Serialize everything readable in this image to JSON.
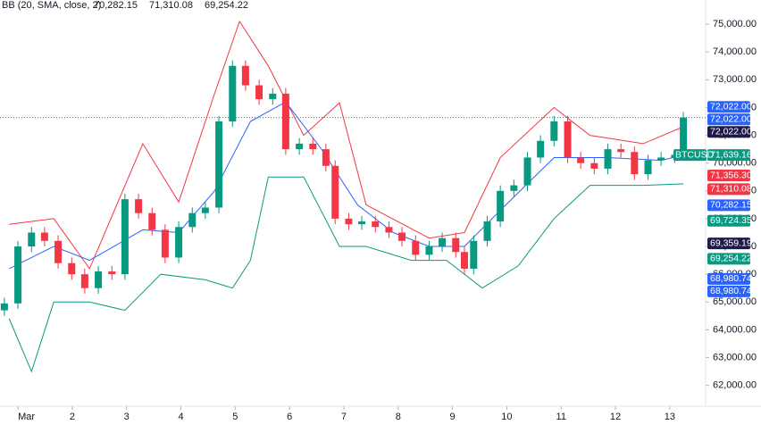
{
  "chart_data": {
    "type": "candlestick",
    "indicator": "BB (20, SMA, close, 2)",
    "indicator_values": [
      {
        "label": "70,282.15",
        "color": "#2962ff"
      },
      {
        "label": "71,310.08",
        "color": "#f23645"
      },
      {
        "label": "69,254.22",
        "color": "#089981"
      }
    ],
    "xlim": [
      0.67,
      13.66
    ],
    "xticks": [
      {
        "value": 1,
        "label": "Mar"
      },
      2,
      3,
      4,
      5,
      6,
      7,
      8,
      9,
      10,
      11,
      12,
      13
    ],
    "ylim": [
      61250,
      75870
    ],
    "yticks": [
      {
        "value": 62000,
        "label": "62,000.00"
      },
      {
        "value": 63000,
        "label": "63,000.00"
      },
      {
        "value": 64000,
        "label": "64,000.00"
      },
      {
        "value": 65000,
        "label": "65,000.00"
      },
      {
        "value": 66000,
        "label": "66,000.00"
      },
      {
        "value": 67000,
        "label": "67,000.00"
      },
      {
        "value": 68000,
        "label": "68,000.00"
      },
      {
        "value": 69000,
        "label": "69,000.00"
      },
      {
        "value": 70000,
        "label": "70,000.00"
      },
      {
        "value": 71000,
        "label": "71,000.00"
      },
      {
        "value": 72000,
        "label": "72,000.00"
      },
      {
        "value": 73000,
        "label": "73,000.00"
      },
      {
        "value": 74000,
        "label": "74,000.00"
      },
      {
        "value": 75000,
        "label": "75,000.00"
      }
    ],
    "up_color": "#089981",
    "down_color": "#f23645",
    "x": [
      0.75,
      1.0,
      1.25,
      1.49,
      1.74,
      1.99,
      2.23,
      2.48,
      2.73,
      2.97,
      3.22,
      3.47,
      3.71,
      3.96,
      4.21,
      4.45,
      4.7,
      4.95,
      5.19,
      5.44,
      5.69,
      5.93,
      6.18,
      6.43,
      6.67,
      6.84,
      7.09,
      7.33,
      7.58,
      7.83,
      8.07,
      8.32,
      8.57,
      8.81,
      9.06,
      9.22,
      9.39,
      9.64,
      9.88,
      10.13,
      10.38,
      10.62,
      10.87,
      11.12,
      11.36,
      11.61,
      11.86,
      12.1,
      12.35,
      12.6,
      12.84,
      13.09,
      13.25
    ],
    "open": [
      64700,
      64950,
      67000,
      67500,
      67200,
      66400,
      66000,
      65500,
      66100,
      66000,
      68700,
      68200,
      67600,
      66600,
      67700,
      68200,
      68400,
      71500,
      73500,
      72800,
      72300,
      72500,
      70500,
      70700,
      70500,
      69900,
      68000,
      67800,
      67900,
      67700,
      67500,
      67200,
      66700,
      67000,
      67300,
      66800,
      66200,
      67200,
      67900,
      69000,
      69200,
      70200,
      70800,
      71500,
      70200,
      70000,
      69800,
      70500,
      70400,
      69600,
      70100,
      70200,
      70300
    ],
    "high": [
      65150,
      67200,
      67700,
      67700,
      67400,
      66600,
      66200,
      66300,
      66300,
      68900,
      68900,
      68400,
      67800,
      67900,
      68400,
      68600,
      71700,
      73700,
      73700,
      73000,
      72700,
      72700,
      70900,
      70900,
      70700,
      70100,
      68200,
      68100,
      68100,
      67900,
      67700,
      67400,
      67200,
      67500,
      67500,
      67000,
      67400,
      68100,
      69200,
      69400,
      70400,
      71000,
      71700,
      71700,
      70400,
      70200,
      70700,
      70700,
      70600,
      70300,
      70400,
      70500,
      71840
    ],
    "low": [
      64500,
      64750,
      66800,
      67000,
      66200,
      65800,
      65300,
      65300,
      65800,
      65800,
      68000,
      67400,
      66400,
      66400,
      67500,
      68000,
      68200,
      71300,
      72600,
      72100,
      72100,
      70300,
      70300,
      70300,
      69700,
      67800,
      67600,
      67600,
      67500,
      67300,
      67000,
      66500,
      66500,
      66800,
      66600,
      66000,
      66000,
      67000,
      67700,
      68800,
      69000,
      70000,
      70600,
      70000,
      69800,
      69600,
      69600,
      70200,
      69400,
      69400,
      69900,
      70000,
      70100
    ],
    "close": [
      64950,
      67000,
      67500,
      67200,
      66400,
      66000,
      65500,
      66100,
      66000,
      68700,
      68200,
      67600,
      66600,
      67700,
      68200,
      68400,
      71500,
      73500,
      72800,
      72300,
      72500,
      70500,
      70700,
      70500,
      69900,
      68000,
      67800,
      67900,
      67700,
      67500,
      67200,
      66700,
      67000,
      67300,
      66800,
      66200,
      67200,
      67900,
      69000,
      69200,
      70200,
      70800,
      71500,
      70200,
      70000,
      69800,
      70500,
      70400,
      69600,
      70100,
      70200,
      70300,
      71639.16
    ],
    "series": [
      {
        "color": "#f23645",
        "x": [
          0.84,
          1.66,
          2.32,
          3.3,
          3.96,
          4.62,
          5.08,
          5.61,
          6.26,
          6.92,
          7.41,
          8.57,
          9.22,
          9.88,
          10.87,
          11.53,
          12.51,
          13.25
        ],
        "values": [
          67800,
          68000,
          66200,
          70700,
          68600,
          72500,
          75100,
          73500,
          71000,
          72170,
          68500,
          67300,
          67500,
          70200,
          72000,
          71000,
          70700,
          71310.08
        ]
      },
      {
        "color": "#2962ff",
        "x": [
          0.84,
          1.66,
          2.32,
          3.3,
          3.96,
          4.62,
          5.28,
          5.93,
          6.59,
          7.25,
          7.91,
          8.57,
          9.22,
          9.88,
          10.87,
          11.86,
          12.84,
          13.25
        ],
        "values": [
          66200,
          67000,
          66500,
          67600,
          67500,
          69000,
          71500,
          72200,
          70500,
          68500,
          67500,
          67000,
          67000,
          68300,
          70200,
          70200,
          70100,
          70282.15
        ]
      },
      {
        "color": "#089981",
        "x": [
          0.84,
          1.25,
          1.66,
          2.32,
          2.97,
          3.63,
          4.45,
          4.95,
          5.28,
          5.61,
          6.26,
          6.92,
          7.41,
          8.24,
          8.89,
          9.55,
          10.21,
          10.87,
          11.53,
          12.51,
          13.25
        ],
        "values": [
          64400,
          62500,
          65000,
          65000,
          64700,
          66000,
          65800,
          65500,
          66500,
          69500,
          69500,
          67000,
          67000,
          66500,
          66500,
          65500,
          66300,
          68000,
          69200,
          69200,
          69254.22
        ]
      }
    ],
    "symbol": "BTCUSD",
    "last_price": 71639.16,
    "price_tags": [
      {
        "value": 72022,
        "label": "72,022.00",
        "color": "#2962ff"
      },
      {
        "value": 72022,
        "label": "72,022.00",
        "color": "#2962ff"
      },
      {
        "value": 72022,
        "label": "72,022.00",
        "color": "#1e1b4b"
      },
      {
        "value": 71639.16,
        "label": "71,639.16",
        "color": "#089981"
      },
      {
        "value": 71356.3,
        "label": "71,356.30",
        "color": "#f23645"
      },
      {
        "value": 71310.08,
        "label": "71,310.08",
        "color": "#f23645"
      },
      {
        "value": 70282.15,
        "label": "70,282.15",
        "color": "#2962ff"
      },
      {
        "value": 69724.35,
        "label": "69,724.35",
        "color": "#089981"
      },
      {
        "value": 69359.19,
        "label": "69,359.19",
        "color": "#1e1b4b"
      },
      {
        "value": 69254.22,
        "label": "69,254.22",
        "color": "#089981"
      },
      {
        "value": 68980.74,
        "label": "68,980.74",
        "color": "#2962ff"
      },
      {
        "value": 68980.74,
        "label": "68,980.74",
        "color": "#2962ff"
      }
    ]
  }
}
